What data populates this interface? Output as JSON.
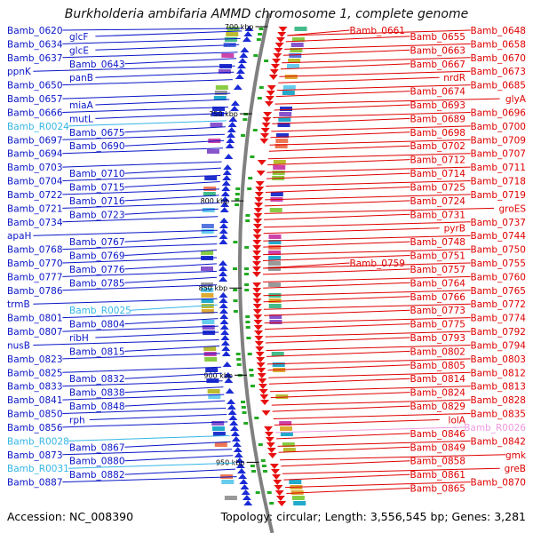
{
  "title": "Burkholderia ambifaria AMMD chromosome 1, complete genome",
  "footer": {
    "accession_text": "Accession: NC_008390",
    "summary_text": "Topology: circular; Length: 3,556,545 bp; Genes: 3,281"
  },
  "colors": {
    "left_labels": "#0a16c8",
    "right_labels": "#e00000",
    "rna_left": "#33b6e6",
    "rna_right": "#ee99dd",
    "backbone": "#808080"
  },
  "kbp_marks": [
    {
      "label": "700 kbp",
      "pos_kbp": 700
    },
    {
      "label": "750 kbp",
      "pos_kbp": 750
    },
    {
      "label": "800 kbp",
      "pos_kbp": 800
    },
    {
      "label": "850 kbp",
      "pos_kbp": 850
    },
    {
      "label": "900 kbp",
      "pos_kbp": 900
    },
    {
      "label": "950 kbp",
      "pos_kbp": 950
    }
  ],
  "left_labels": [
    {
      "text": "Bamb_0620",
      "kind": "gene"
    },
    {
      "text": "glcF",
      "kind": "gene"
    },
    {
      "text": "Bamb_0634",
      "kind": "gene"
    },
    {
      "text": "glcE",
      "kind": "gene"
    },
    {
      "text": "Bamb_0637",
      "kind": "gene"
    },
    {
      "text": "Bamb_0643",
      "kind": "gene"
    },
    {
      "text": "ppnK",
      "kind": "gene"
    },
    {
      "text": "panB",
      "kind": "gene"
    },
    {
      "text": "Bamb_0650",
      "kind": "gene"
    },
    {
      "text": "Bamb_0657",
      "kind": "gene"
    },
    {
      "text": "miaA",
      "kind": "gene"
    },
    {
      "text": "Bamb_0666",
      "kind": "gene"
    },
    {
      "text": "mutL",
      "kind": "gene"
    },
    {
      "text": "Bamb_R0024",
      "kind": "rna"
    },
    {
      "text": "Bamb_0675",
      "kind": "gene"
    },
    {
      "text": "Bamb_0697",
      "kind": "gene"
    },
    {
      "text": "Bamb_0690",
      "kind": "gene"
    },
    {
      "text": "Bamb_0694",
      "kind": "gene"
    },
    {
      "text": "Bamb_0703",
      "kind": "gene"
    },
    {
      "text": "Bamb_0710",
      "kind": "gene"
    },
    {
      "text": "Bamb_0704",
      "kind": "gene"
    },
    {
      "text": "Bamb_0715",
      "kind": "gene"
    },
    {
      "text": "Bamb_0722",
      "kind": "gene"
    },
    {
      "text": "Bamb_0716",
      "kind": "gene"
    },
    {
      "text": "Bamb_0721",
      "kind": "gene"
    },
    {
      "text": "Bamb_0723",
      "kind": "gene"
    },
    {
      "text": "Bamb_0734",
      "kind": "gene"
    },
    {
      "text": "apaH",
      "kind": "gene"
    },
    {
      "text": "Bamb_0767",
      "kind": "gene"
    },
    {
      "text": "Bamb_0768",
      "kind": "gene"
    },
    {
      "text": "Bamb_0769",
      "kind": "gene"
    },
    {
      "text": "Bamb_0770",
      "kind": "gene"
    },
    {
      "text": "Bamb_0776",
      "kind": "gene"
    },
    {
      "text": "Bamb_0777",
      "kind": "gene"
    },
    {
      "text": "Bamb_0785",
      "kind": "gene"
    },
    {
      "text": "Bamb_0786",
      "kind": "gene"
    },
    {
      "text": "trmB",
      "kind": "gene"
    },
    {
      "text": "Bamb_R0025",
      "kind": "rna"
    },
    {
      "text": "Bamb_0801",
      "kind": "gene"
    },
    {
      "text": "Bamb_0804",
      "kind": "gene"
    },
    {
      "text": "Bamb_0807",
      "kind": "gene"
    },
    {
      "text": "ribH",
      "kind": "gene"
    },
    {
      "text": "nusB",
      "kind": "gene"
    },
    {
      "text": "Bamb_0815",
      "kind": "gene"
    },
    {
      "text": "Bamb_0823",
      "kind": "gene"
    },
    {
      "text": "Bamb_0825",
      "kind": "gene"
    },
    {
      "text": "Bamb_0832",
      "kind": "gene"
    },
    {
      "text": "Bamb_0833",
      "kind": "gene"
    },
    {
      "text": "Bamb_0838",
      "kind": "gene"
    },
    {
      "text": "Bamb_0841",
      "kind": "gene"
    },
    {
      "text": "Bamb_0848",
      "kind": "gene"
    },
    {
      "text": "Bamb_0850",
      "kind": "gene"
    },
    {
      "text": "rph",
      "kind": "gene"
    },
    {
      "text": "Bamb_0856",
      "kind": "gene"
    },
    {
      "text": "Bamb_R0028",
      "kind": "rna"
    },
    {
      "text": "Bamb_0867",
      "kind": "gene"
    },
    {
      "text": "Bamb_0873",
      "kind": "gene"
    },
    {
      "text": "Bamb_0880",
      "kind": "gene"
    },
    {
      "text": "Bamb_R0031",
      "kind": "rna"
    },
    {
      "text": "Bamb_0882",
      "kind": "gene"
    },
    {
      "text": "Bamb_0887",
      "kind": "gene"
    }
  ],
  "right_labels": [
    {
      "text": "Bamb_0648",
      "kind": "gene"
    },
    {
      "text": "Bamb_0655",
      "kind": "gene"
    },
    {
      "text": "Bamb_0661",
      "kind": "gene"
    },
    {
      "text": "Bamb_0658",
      "kind": "gene"
    },
    {
      "text": "Bamb_0663",
      "kind": "gene"
    },
    {
      "text": "Bamb_0670",
      "kind": "gene"
    },
    {
      "text": "Bamb_0667",
      "kind": "gene"
    },
    {
      "text": "Bamb_0673",
      "kind": "gene"
    },
    {
      "text": "nrdR",
      "kind": "gene"
    },
    {
      "text": "Bamb_0685",
      "kind": "gene"
    },
    {
      "text": "Bamb_0674",
      "kind": "gene"
    },
    {
      "text": "glyA",
      "kind": "gene"
    },
    {
      "text": "Bamb_0693",
      "kind": "gene"
    },
    {
      "text": "Bamb_0696",
      "kind": "gene"
    },
    {
      "text": "Bamb_0689",
      "kind": "gene"
    },
    {
      "text": "Bamb_0700",
      "kind": "gene"
    },
    {
      "text": "Bamb_0698",
      "kind": "gene"
    },
    {
      "text": "Bamb_0709",
      "kind": "gene"
    },
    {
      "text": "Bamb_0702",
      "kind": "gene"
    },
    {
      "text": "Bamb_0707",
      "kind": "gene"
    },
    {
      "text": "Bamb_0712",
      "kind": "gene"
    },
    {
      "text": "Bamb_0711",
      "kind": "gene"
    },
    {
      "text": "Bamb_0714",
      "kind": "gene"
    },
    {
      "text": "Bamb_0718",
      "kind": "gene"
    },
    {
      "text": "Bamb_0725",
      "kind": "gene"
    },
    {
      "text": "Bamb_0719",
      "kind": "gene"
    },
    {
      "text": "Bamb_0724",
      "kind": "gene"
    },
    {
      "text": "groES",
      "kind": "gene"
    },
    {
      "text": "Bamb_0731",
      "kind": "gene"
    },
    {
      "text": "Bamb_0737",
      "kind": "gene"
    },
    {
      "text": "pyrB",
      "kind": "gene"
    },
    {
      "text": "Bamb_0744",
      "kind": "gene"
    },
    {
      "text": "Bamb_0748",
      "kind": "gene"
    },
    {
      "text": "Bamb_0750",
      "kind": "gene"
    },
    {
      "text": "Bamb_0751",
      "kind": "gene"
    },
    {
      "text": "Bamb_0755",
      "kind": "gene"
    },
    {
      "text": "Bamb_0757",
      "kind": "gene"
    },
    {
      "text": "Bamb_0759",
      "kind": "gene"
    },
    {
      "text": "Bamb_0760",
      "kind": "gene"
    },
    {
      "text": "Bamb_0764",
      "kind": "gene"
    },
    {
      "text": "Bamb_0765",
      "kind": "gene"
    },
    {
      "text": "Bamb_0766",
      "kind": "gene"
    },
    {
      "text": "Bamb_0772",
      "kind": "gene"
    },
    {
      "text": "Bamb_0773",
      "kind": "gene"
    },
    {
      "text": "Bamb_0774",
      "kind": "gene"
    },
    {
      "text": "Bamb_0775",
      "kind": "gene"
    },
    {
      "text": "Bamb_0792",
      "kind": "gene"
    },
    {
      "text": "Bamb_0793",
      "kind": "gene"
    },
    {
      "text": "Bamb_0794",
      "kind": "gene"
    },
    {
      "text": "Bamb_0802",
      "kind": "gene"
    },
    {
      "text": "Bamb_0803",
      "kind": "gene"
    },
    {
      "text": "Bamb_0805",
      "kind": "gene"
    },
    {
      "text": "Bamb_0812",
      "kind": "gene"
    },
    {
      "text": "Bamb_0814",
      "kind": "gene"
    },
    {
      "text": "Bamb_0813",
      "kind": "gene"
    },
    {
      "text": "Bamb_0824",
      "kind": "gene"
    },
    {
      "text": "Bamb_0828",
      "kind": "gene"
    },
    {
      "text": "Bamb_0829",
      "kind": "gene"
    },
    {
      "text": "Bamb_0835",
      "kind": "gene"
    },
    {
      "text": "lolA",
      "kind": "gene"
    },
    {
      "text": "Bamb_R0026",
      "kind": "rna"
    },
    {
      "text": "Bamb_0846",
      "kind": "gene"
    },
    {
      "text": "Bamb_0842",
      "kind": "gene"
    },
    {
      "text": "Bamb_0849",
      "kind": "gene"
    },
    {
      "text": "gmk",
      "kind": "gene"
    },
    {
      "text": "Bamb_0858",
      "kind": "gene"
    },
    {
      "text": "greB",
      "kind": "gene"
    },
    {
      "text": "Bamb_0861",
      "kind": "gene"
    },
    {
      "text": "Bamb_0870",
      "kind": "gene"
    },
    {
      "text": "Bamb_0865",
      "kind": "gene"
    }
  ]
}
